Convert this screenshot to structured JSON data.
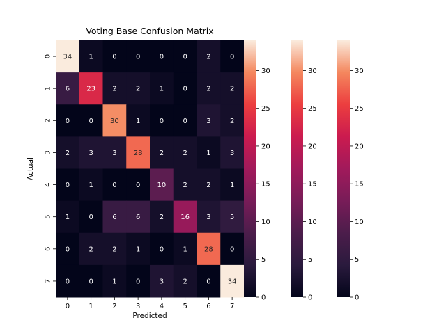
{
  "chart_data": {
    "type": "heatmap",
    "title": "Voting Base Confusion Matrix",
    "xlabel": "Predicted",
    "ylabel": "Actual",
    "x_categories": [
      "0",
      "1",
      "2",
      "3",
      "4",
      "5",
      "6",
      "7"
    ],
    "y_categories": [
      "0",
      "1",
      "2",
      "3",
      "4",
      "5",
      "6",
      "7"
    ],
    "values": [
      [
        34,
        1,
        0,
        0,
        0,
        0,
        2,
        0
      ],
      [
        6,
        23,
        2,
        2,
        1,
        0,
        2,
        2
      ],
      [
        0,
        0,
        30,
        1,
        0,
        0,
        3,
        2
      ],
      [
        2,
        3,
        3,
        28,
        2,
        2,
        1,
        3
      ],
      [
        0,
        1,
        0,
        0,
        10,
        2,
        2,
        1
      ],
      [
        1,
        0,
        6,
        6,
        2,
        16,
        3,
        5
      ],
      [
        0,
        2,
        2,
        1,
        0,
        1,
        28,
        0
      ],
      [
        0,
        0,
        1,
        0,
        3,
        2,
        0,
        34
      ]
    ],
    "value_range": [
      0,
      34
    ],
    "colormap": "rocket",
    "colorbars": [
      {
        "ticks": [
          "0",
          "5",
          "10",
          "15",
          "20",
          "25",
          "30"
        ]
      },
      {
        "ticks": [
          "0",
          "5",
          "10",
          "15",
          "20",
          "25",
          "30"
        ]
      },
      {
        "ticks": [
          "0",
          "5",
          "10",
          "15",
          "20",
          "25",
          "30"
        ]
      }
    ]
  }
}
